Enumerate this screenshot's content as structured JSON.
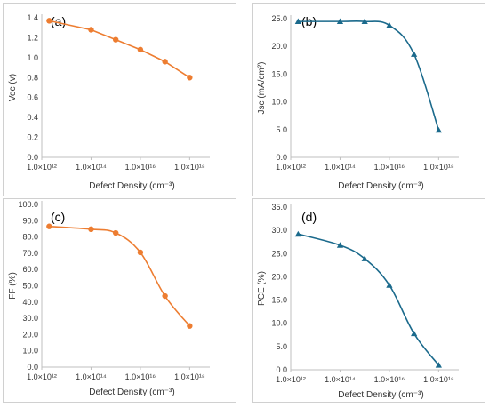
{
  "chart_data": [
    {
      "type": "line",
      "panel_label": "(a)",
      "ylabel": "Voc (v)",
      "xlabel": "Defect Density (cm⁻³)",
      "x_scale": "log",
      "x": [
        2000000000000.0,
        100000000000000.0,
        1000000000000000.0,
        1e+16,
        1e+17,
        1e+18
      ],
      "values": [
        1.37,
        1.28,
        1.18,
        1.08,
        0.96,
        0.8
      ],
      "ylim": [
        0,
        1.4
      ],
      "yticks": [
        "0.0",
        "0.2",
        "0.4",
        "0.6",
        "0.8",
        "1.0",
        "1.2",
        "1.4"
      ],
      "xticks": [
        "1.0×10¹²",
        "1.0×10¹⁴",
        "1.0×10¹⁶",
        "1.0×10¹⁸"
      ],
      "color": "#ED7D31",
      "marker": "circle",
      "curve": "straight"
    },
    {
      "type": "line",
      "panel_label": "(b)",
      "ylabel": "Jsc (mA/cm²)",
      "xlabel": "Defect Density (cm⁻³)",
      "x_scale": "log",
      "x": [
        2000000000000.0,
        100000000000000.0,
        1000000000000000.0,
        1e+16,
        1e+17,
        1e+18
      ],
      "values": [
        24.5,
        24.5,
        24.5,
        23.8,
        18.6,
        4.9
      ],
      "ylim": [
        0,
        25
      ],
      "yticks": [
        "0.0",
        "5.0",
        "10.0",
        "15.0",
        "20.0",
        "25.0"
      ],
      "xticks": [
        "1.0×10¹²",
        "1.0×10¹⁴",
        "1.0×10¹⁶",
        "1.0×10¹⁸"
      ],
      "color": "#1B6A8C",
      "marker": "triangle",
      "curve": "smooth"
    },
    {
      "type": "line",
      "panel_label": "(c)",
      "ylabel": "FF (%)",
      "xlabel": "Defect Density (cm⁻³)",
      "x_scale": "log",
      "x": [
        2000000000000.0,
        100000000000000.0,
        1000000000000000.0,
        1e+16,
        1e+17,
        1e+18
      ],
      "values": [
        86.5,
        84.8,
        82.5,
        70.5,
        43.7,
        25.3
      ],
      "ylim": [
        0,
        100
      ],
      "yticks": [
        "0.0",
        "10.0",
        "20.0",
        "30.0",
        "40.0",
        "50.0",
        "60.0",
        "70.0",
        "80.0",
        "90.0",
        "100.0"
      ],
      "xticks": [
        "1.0×10¹²",
        "1.0×10¹⁴",
        "1.0×10¹⁶",
        "1.0×10¹⁸"
      ],
      "color": "#ED7D31",
      "marker": "circle",
      "curve": "smooth"
    },
    {
      "type": "line",
      "panel_label": "(d)",
      "ylabel": "PCE (%)",
      "xlabel": "Defect Density (cm⁻³)",
      "x_scale": "log",
      "x": [
        2000000000000.0,
        100000000000000.0,
        1000000000000000.0,
        1e+16,
        1e+17,
        1e+18
      ],
      "values": [
        29.2,
        26.8,
        23.9,
        18.2,
        7.8,
        1.0
      ],
      "ylim": [
        0,
        35
      ],
      "yticks": [
        "0.0",
        "5.0",
        "10.0",
        "15.0",
        "20.0",
        "25.0",
        "30.0",
        "35.0"
      ],
      "xticks": [
        "1.0×10¹²",
        "1.0×10¹⁴",
        "1.0×10¹⁶",
        "1.0×10¹⁸"
      ],
      "color": "#1B6A8C",
      "marker": "triangle",
      "curve": "smooth"
    }
  ]
}
